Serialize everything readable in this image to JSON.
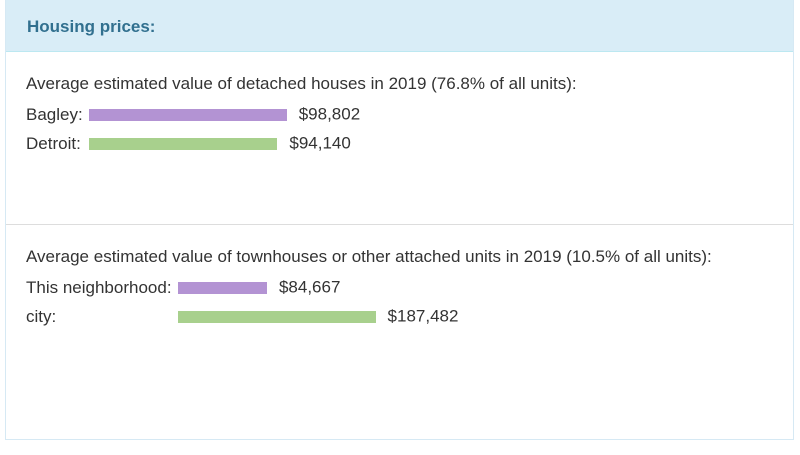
{
  "header": {
    "title": "Housing prices:"
  },
  "sections": [
    {
      "title": "Average estimated value of detached houses in 2019 (76.8% of all units):",
      "rows": [
        {
          "label": "Bagley:",
          "value": 98802,
          "value_label": "$98,802",
          "color": "#b393d3"
        },
        {
          "label": "Detroit:",
          "value": 94140,
          "value_label": "$94,140",
          "color": "#a8d08d"
        }
      ]
    },
    {
      "title": "Average estimated value of townhouses or other attached units in 2019 (10.5% of all units):",
      "rows": [
        {
          "label": "This neighborhood:",
          "value": 84667,
          "value_label": "$84,667",
          "color": "#b393d3"
        },
        {
          "label": "city:",
          "value": 187482,
          "value_label": "$187,482",
          "color": "#a8d08d"
        }
      ]
    }
  ]
}
